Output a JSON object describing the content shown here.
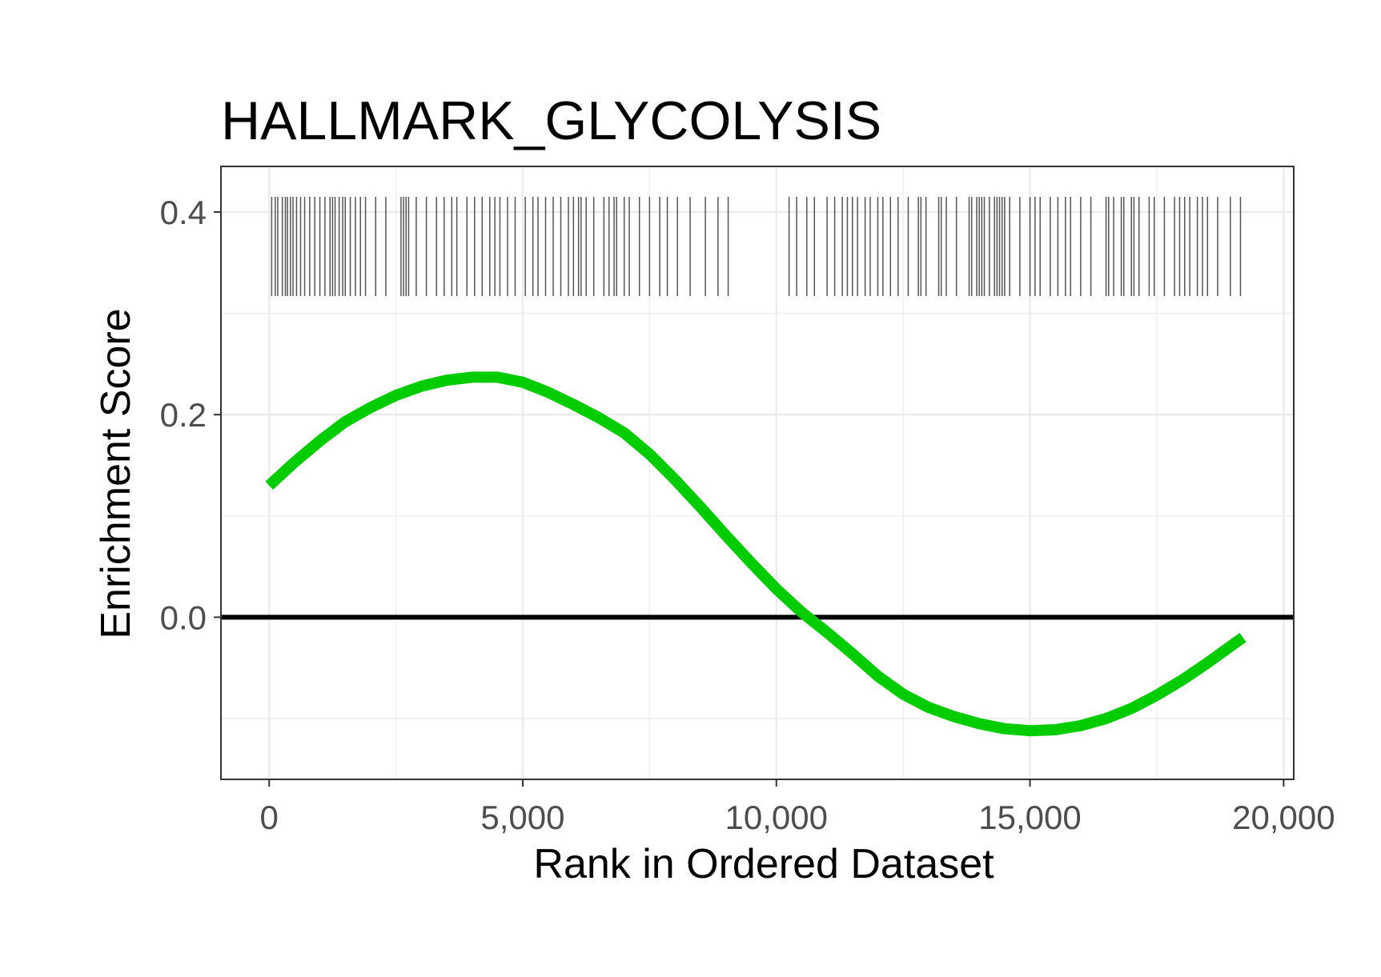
{
  "chart_data": {
    "type": "line",
    "title": "HALLMARK_GLYCOLYSIS",
    "xlabel": "Rank in Ordered Dataset",
    "ylabel": "Enrichment Score",
    "xlim": [
      -950,
      20200
    ],
    "ylim": [
      -0.16,
      0.445
    ],
    "x_ticks": [
      0,
      5000,
      10000,
      15000,
      20000
    ],
    "x_tick_labels": [
      "0",
      "5,000",
      "10,000",
      "15,000",
      "20,000"
    ],
    "y_ticks": [
      0.0,
      0.2,
      0.4
    ],
    "y_tick_labels": [
      "0.0",
      "0.2",
      "0.4"
    ],
    "x_minor_ticks": [
      2500,
      7500,
      12500,
      17500
    ],
    "y_minor_ticks": [
      -0.1,
      0.1,
      0.3
    ],
    "grid": true,
    "legend": "none",
    "line_color": "#00cc00",
    "rug_color": "#555555",
    "zero_line_color": "#000000",
    "series": [
      {
        "x": [
          0,
          500,
          1000,
          1500,
          2000,
          2500,
          3000,
          3500,
          4000,
          4500,
          5000,
          5500,
          6000,
          6500,
          7000,
          7500,
          8000,
          8500,
          9000,
          9500,
          10000,
          10500,
          11000,
          11500,
          12000,
          12500,
          13000,
          13500,
          14000,
          14500,
          15000,
          15500,
          16000,
          16500,
          17000,
          17500,
          18000,
          18500,
          19000,
          19200
        ],
        "values": [
          0.13,
          0.153,
          0.174,
          0.193,
          0.207,
          0.219,
          0.228,
          0.234,
          0.237,
          0.237,
          0.232,
          0.222,
          0.21,
          0.197,
          0.182,
          0.161,
          0.136,
          0.109,
          0.081,
          0.054,
          0.028,
          0.005,
          -0.015,
          -0.036,
          -0.058,
          -0.076,
          -0.089,
          -0.098,
          -0.105,
          -0.11,
          -0.112,
          -0.111,
          -0.107,
          -0.1,
          -0.09,
          -0.077,
          -0.062,
          -0.045,
          -0.027,
          -0.02
        ]
      }
    ],
    "rug_positions": [
      50,
      120,
      170,
      260,
      320,
      360,
      420,
      470,
      540,
      620,
      700,
      800,
      900,
      1000,
      1100,
      1200,
      1250,
      1300,
      1380,
      1450,
      1500,
      1600,
      1700,
      1800,
      1900,
      2100,
      2300,
      2600,
      2650,
      2700,
      2750,
      2900,
      3100,
      3300,
      3450,
      3600,
      3700,
      3900,
      4050,
      4200,
      4350,
      4450,
      4550,
      4700,
      4850,
      5050,
      5200,
      5300,
      5450,
      5600,
      5750,
      5900,
      6000,
      6100,
      6150,
      6250,
      6400,
      6600,
      6700,
      6800,
      6850,
      7000,
      7100,
      7300,
      7500,
      7700,
      7850,
      8050,
      8300,
      8600,
      8850,
      9050,
      10250,
      10400,
      10600,
      10750,
      11000,
      11150,
      11300,
      11400,
      11500,
      11600,
      11750,
      11850,
      12000,
      12100,
      12250,
      12400,
      12600,
      12800,
      12850,
      12950,
      13200,
      13250,
      13350,
      13550,
      13800,
      13850,
      13950,
      14000,
      14050,
      14100,
      14200,
      14300,
      14350,
      14400,
      14450,
      14500,
      14600,
      14800,
      15000,
      15100,
      15200,
      15400,
      15550,
      15700,
      15800,
      16000,
      16200,
      16500,
      16550,
      16650,
      16800,
      16850,
      17000,
      17050,
      17150,
      17350,
      17450,
      17650,
      17850,
      17950,
      18050,
      18150,
      18300,
      18400,
      18500,
      18700,
      18950,
      19150
    ]
  }
}
